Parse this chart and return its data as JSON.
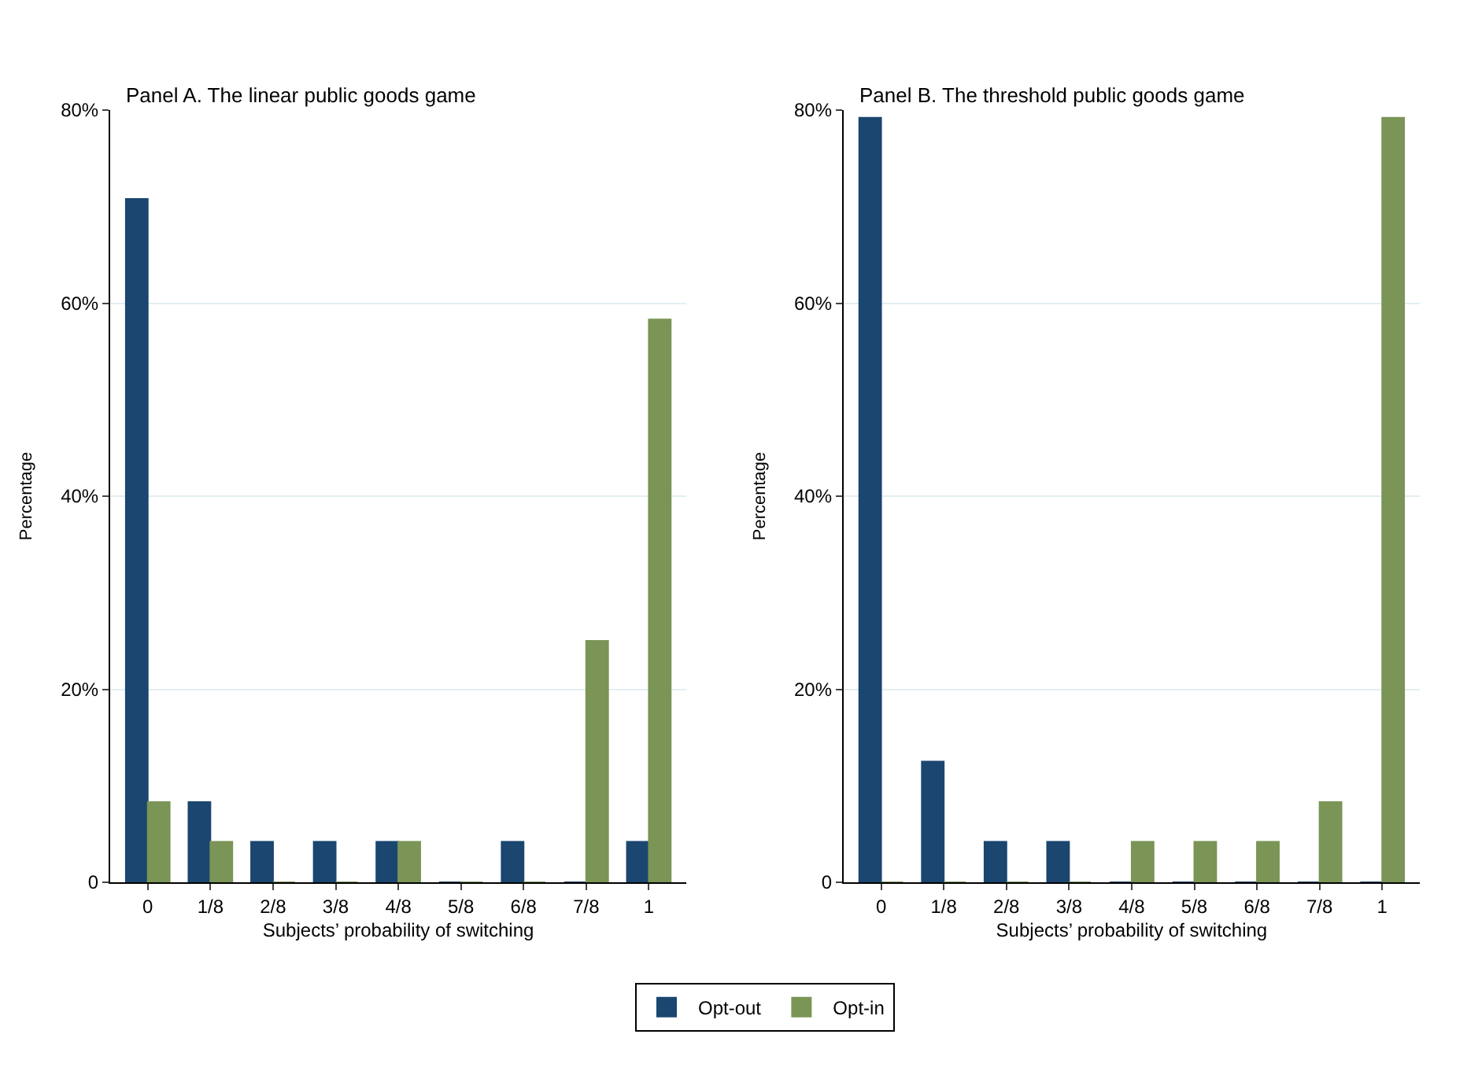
{
  "chart_data": [
    {
      "type": "bar",
      "title": "Panel A. The linear public goods game",
      "xlabel": "Subjects’ probability of switching",
      "ylabel": "Percentage",
      "categories": [
        "0",
        "1/8",
        "2/8",
        "3/8",
        "4/8",
        "5/8",
        "6/8",
        "7/8",
        "1"
      ],
      "series": [
        {
          "name": "Opt-out",
          "color": "#1a4670",
          "values": [
            70.8,
            8.3,
            4.2,
            4.2,
            4.2,
            0,
            4.2,
            0,
            4.2
          ]
        },
        {
          "name": "Opt-in",
          "color": "#7a9556",
          "values": [
            8.3,
            4.2,
            0,
            0,
            4.2,
            0,
            0,
            25,
            58.3
          ]
        }
      ],
      "ylim": [
        0,
        80
      ],
      "yticks": [
        0,
        {
          "value": 20,
          "label": "20%"
        },
        {
          "value": 40,
          "label": "40%"
        },
        {
          "value": 60,
          "label": "60%"
        },
        {
          "value": 80,
          "label": "80%"
        }
      ],
      "grid": "y",
      "legend": "bottom"
    },
    {
      "type": "bar",
      "title": "Panel B. The threshold public goods game",
      "xlabel": "Subjects’ probability of switching",
      "ylabel": "Percentage",
      "categories": [
        "0",
        "1/8",
        "2/8",
        "3/8",
        "4/8",
        "5/8",
        "6/8",
        "7/8",
        "1"
      ],
      "series": [
        {
          "name": "Opt-out",
          "color": "#1a4670",
          "values": [
            79.2,
            12.5,
            4.2,
            4.2,
            0,
            0,
            0,
            0,
            0
          ]
        },
        {
          "name": "Opt-in",
          "color": "#7a9556",
          "values": [
            0,
            0,
            0,
            0,
            4.2,
            4.2,
            4.2,
            8.3,
            79.2
          ]
        }
      ],
      "ylim": [
        0,
        80
      ],
      "yticks": [
        0,
        {
          "value": 20,
          "label": "20%"
        },
        {
          "value": 40,
          "label": "40%"
        },
        {
          "value": 60,
          "label": "60%"
        },
        {
          "value": 80,
          "label": "80%"
        }
      ],
      "grid": "y",
      "legend": "bottom"
    }
  ]
}
